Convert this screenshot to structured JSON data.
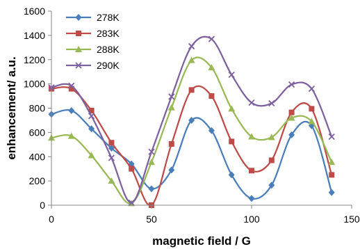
{
  "chart_data": {
    "type": "line",
    "title": "",
    "xlabel": "magnetic field / G",
    "ylabel": "enhancement/ a.u.",
    "xlim": [
      0,
      150
    ],
    "ylim": [
      0,
      1600
    ],
    "x_ticks": [
      0,
      50,
      100,
      150
    ],
    "y_ticks": [
      0,
      200,
      400,
      600,
      800,
      1000,
      1200,
      1400,
      1600
    ],
    "grid": false,
    "legend_position": "top-left",
    "x": [
      0,
      10,
      20,
      30,
      40,
      50,
      60,
      70,
      80,
      90,
      100,
      110,
      120,
      130,
      140
    ],
    "series": [
      {
        "name": "278K",
        "color": "#4a7ebb",
        "marker": "diamond",
        "values": [
          750,
          780,
          630,
          470,
          340,
          135,
          290,
          700,
          615,
          250,
          55,
          165,
          580,
          655,
          105
        ]
      },
      {
        "name": "283K",
        "color": "#be4b48",
        "marker": "square",
        "values": [
          960,
          960,
          780,
          515,
          300,
          0,
          505,
          950,
          900,
          525,
          285,
          370,
          765,
          795,
          250
        ]
      },
      {
        "name": "288K",
        "color": "#98b954",
        "marker": "triangle",
        "values": [
          555,
          570,
          410,
          200,
          15,
          355,
          805,
          1195,
          1135,
          795,
          565,
          560,
          720,
          690,
          355
        ]
      },
      {
        "name": "290K",
        "color": "#7d60a0",
        "marker": "x",
        "values": [
          970,
          985,
          735,
          390,
          20,
          440,
          895,
          1310,
          1370,
          1075,
          845,
          840,
          995,
          960,
          565
        ]
      }
    ]
  }
}
